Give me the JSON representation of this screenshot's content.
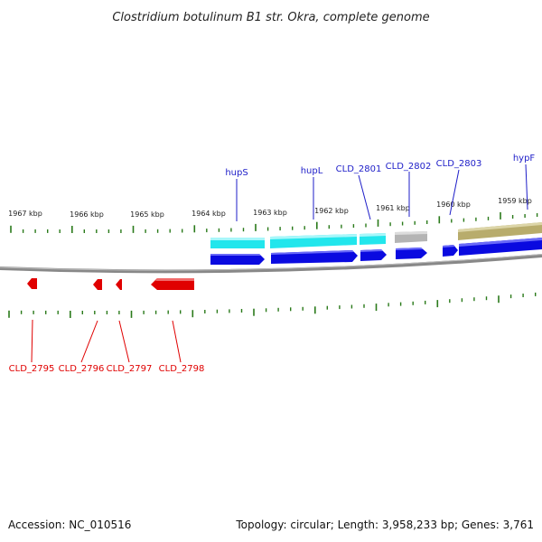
{
  "title": "Clostridium botulinum B1 str. Okra, complete genome",
  "kbp_labels": [
    "1967 kbp",
    "1966 kbp",
    "1965 kbp",
    "1964 kbp",
    "1963 kbp",
    "1962 kbp",
    "1961 kbp",
    "1960 kbp",
    "1959 kbp"
  ],
  "top_gene_labels": [
    "hupS",
    "hupL",
    "CLD_2801",
    "CLD_2802",
    "CLD_2803",
    "hypF"
  ],
  "bottom_gene_labels": [
    "CLD_2795",
    "CLD_2796",
    "CLD_2797",
    "CLD_2798"
  ],
  "footer": {
    "accession": "Accession: NC_010516",
    "summary": "Topology: circular; Length: 3,958,233 bp; Genes: 3,761"
  },
  "colors": {
    "forward_gene": "#0a0ae0",
    "reverse_gene": "#e00000",
    "cds_cyan": "#22e6ec",
    "cds_gray": "#b4b4b4",
    "cds_khaki": "#b8ac6c",
    "tick_green": "#2a7a1a",
    "backbone": "#666666"
  }
}
